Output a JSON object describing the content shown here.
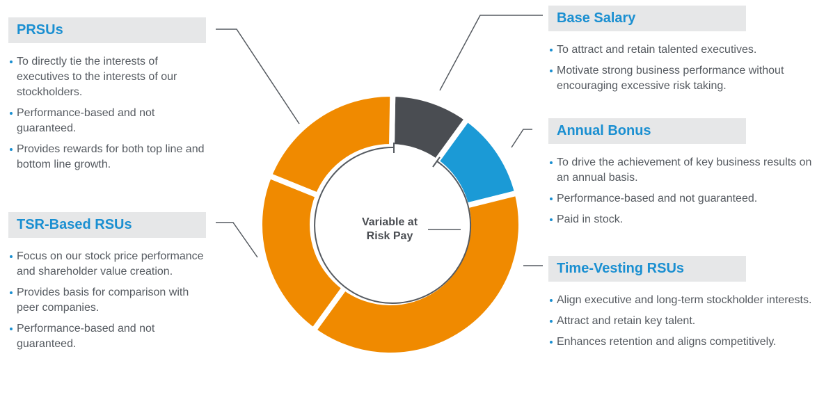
{
  "center_label": [
    "Variable at",
    "Risk Pay"
  ],
  "sections": [
    {
      "title": "PRSUs",
      "bullets": [
        "To directly tie the interests of executives to the interests of our stockholders.",
        "Performance-based and not guaranteed.",
        "Provides rewards for both top line and bottom line growth."
      ]
    },
    {
      "title": "TSR-Based RSUs",
      "bullets": [
        "Focus on our stock price performance and shareholder value creation.",
        "Provides basis for comparison with peer companies.",
        "Performance-based and not guaranteed."
      ]
    },
    {
      "title": "Base Salary",
      "bullets": [
        "To attract and retain talented executives.",
        "Motivate strong business performance without encouraging excessive risk taking."
      ]
    },
    {
      "title": "Annual Bonus",
      "bullets": [
        "To drive the achievement of key business results on an annual basis.",
        "Performance-based and not guaranteed.",
        "Paid in stock."
      ]
    },
    {
      "title": "Time-Vesting RSUs",
      "bullets": [
        "Align executive and long-term stockholder interests.",
        "Attract and retain key talent.",
        "Enhances retention and aligns competitively."
      ]
    }
  ]
}
